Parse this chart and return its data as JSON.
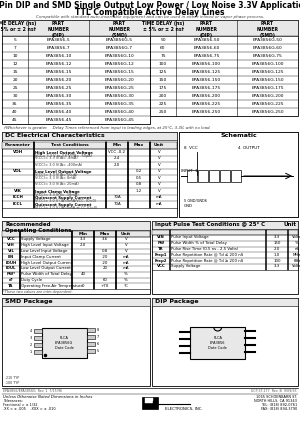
{
  "title_line1": "8 Pin DIP and SMD Single Output Low Power / Low Noise 3.3V Application",
  "title_line2": "TTL Compatible Active Delay Lines",
  "subtitle": "Compatible with standard auto-insertable equipment and can be used in either inlined or vapor phase process.",
  "table1_rows": [
    [
      "5",
      "EPA3856-5",
      "EPA3856G-5"
    ],
    [
      "7",
      "EPA3856-7",
      "EPA3856G-7"
    ],
    [
      "10",
      "EPA3856-10",
      "EPA3856G-10"
    ],
    [
      "12",
      "EPA3856-12",
      "EPA3856G-12"
    ],
    [
      "15",
      "EPA3856-15",
      "EPA3856G-15"
    ],
    [
      "20",
      "EPA3856-20",
      "EPA3856G-20"
    ],
    [
      "25",
      "EPA3856-25",
      "EPA3856G-25"
    ],
    [
      "30",
      "EPA3856-30",
      "EPA3856G-30"
    ],
    [
      "35",
      "EPA3856-35",
      "EPA3856G-35"
    ],
    [
      "40",
      "EPA3856-40",
      "EPA3856G-40"
    ],
    [
      "45",
      "EPA3856-45",
      "EPA3856G-45"
    ]
  ],
  "table2_rows": [
    [
      "50",
      "EPA3856-50",
      "EPA3856G-50"
    ],
    [
      "60",
      "EPA3856-60",
      "EPA3856G-60"
    ],
    [
      "75",
      "EPA3856-75",
      "EPA3856G-75"
    ],
    [
      "100",
      "EPA3856-100",
      "EPA3856G-100"
    ],
    [
      "125",
      "EPA3856-125",
      "EPA3856G-125"
    ],
    [
      "150",
      "EPA3856-150",
      "EPA3856G-150"
    ],
    [
      "175",
      "EPA3856-175",
      "EPA3856G-175"
    ],
    [
      "200",
      "EPA3856-200",
      "EPA3856G-200"
    ],
    [
      "225",
      "EPA3856-225",
      "EPA3856G-225"
    ],
    [
      "250",
      "EPA3856-250",
      "EPA3856G-250"
    ]
  ],
  "col_hdr1": "TIME DELAY (ns)\n± 5% or ± 2 ns†",
  "col_hdr2": "PART\nNUMBER\n(DIP)",
  "col_hdr3": "PART\nNUMBER\n(SMD)",
  "footnote": "†Whichever is greater.    Delay Times referenced from input to leading edges, at 25°C, 3.3V, with no load.",
  "dc_title": "DC Electrical Characteristics",
  "dc_col_headers": [
    "Parameter",
    "Test Conditions",
    "Min",
    "Max",
    "Unit"
  ],
  "dc_rows": [
    [
      "VOH",
      "High Level Output Voltage",
      "VCC= 3.3 V to 3.6 V(TA= -50μA)",
      "VCC -0.2",
      "",
      "V"
    ],
    [
      "",
      "",
      "V(CC)= 3.3 V(IA= -8mA)",
      "2.4",
      "",
      "V"
    ],
    [
      "",
      "",
      "V(CC)= 3.0 V(IA= -400mA)",
      "2.0",
      "",
      "V"
    ],
    [
      "VOL",
      "Low Level Output Voltage",
      "V(CC)= 3.3 V(IA= 50μA)",
      "",
      "0.2",
      "V"
    ],
    [
      "",
      "",
      "V(CC)= 3.3 V(IA= 8mA)",
      "",
      "0.5",
      "V"
    ],
    [
      "",
      "",
      "V(CC)= 3.0 V(IA= 20mA)",
      "",
      "0.8",
      "V"
    ],
    [
      "VIK",
      "Input Clamp Voltage",
      "V(CC)= 3.3 V(II= -18mA)",
      "",
      "1.2",
      "V"
    ],
    [
      "ICCH",
      "Quiescent Supply Current",
      "V(CC)= 3.0 V (IA=0mA/VCC, IO=0)",
      "70A",
      "",
      "mA"
    ],
    [
      "ICCL",
      "Quiescent Supply Current",
      "V(CC)= 3.0 V (IA=0mA at CC IO=0)",
      "70A",
      "",
      "mA"
    ]
  ],
  "sch_title": "Schematic",
  "rec_title": "Recommended\nOperating Conditions",
  "rec_col_headers": [
    "",
    "Min",
    "Max",
    "Unit"
  ],
  "rec_rows": [
    [
      "VCC",
      "Supply Voltage",
      "3.3",
      "3.6",
      "V"
    ],
    [
      "VIH",
      "High Level Input Voltage",
      "2.0",
      "",
      "V"
    ],
    [
      "VIL",
      "Low Level Input Voltage",
      "",
      "0.8",
      "V"
    ],
    [
      "IIN",
      "Input Clamp Current",
      "",
      "-20",
      "mA"
    ],
    [
      "IOUH",
      "High Level Output Current",
      "",
      "-20",
      "mA"
    ],
    [
      "IOUL",
      "Low Level Output Current",
      "",
      "20",
      "mA"
    ],
    [
      "PW*",
      "Pulse Width of Total Delay",
      "40",
      "",
      "%"
    ],
    [
      "d*",
      "Duty Cycle",
      "",
      "60",
      "%"
    ],
    [
      "TA",
      "Operating Free-Air Temperature",
      "0",
      "+70",
      "°C"
    ]
  ],
  "rec_footnote": "*These two values are inter-dependent.",
  "pulse_title": "Input Pulse Test Conditions @ 25° C",
  "pulse_unit": "Unit",
  "pulse_rows": [
    [
      "VIN",
      "Pulse Input Voltage",
      "3.3",
      "Volts"
    ],
    [
      "PW",
      "Pulse Width % of Total Delay",
      "150",
      "%"
    ],
    [
      "TR",
      "Pulse Rise Time (0.5 ns - 2.5 Volts)",
      "2.0",
      "nS"
    ],
    [
      "Frep1",
      "Pulse Repetition Rate @ Td ≤ 200 nS",
      "1.0",
      "MHz"
    ],
    [
      "Frep2",
      "Pulse Repetition Rate @ Td ≥ 200 nS",
      "100",
      "KHz"
    ],
    [
      "VCC",
      "Supply Voltage",
      "3.3",
      "Volts"
    ]
  ],
  "smd_title": "SMD Package",
  "dip_title": "DIP Package",
  "bottom_left1": "Unless Otherwise Noted Dimensions in Inches",
  "bottom_left2": "Tolerances:",
  "bottom_left3": "Fractional = ± 1/32",
  "bottom_left4": ".XX = ± .005    .XXX = ± .010",
  "company_name": "ELECTRONICS, INC.",
  "company_addr1": "1065 SCHOENBARN ST.",
  "company_addr2": "NORTH HILLS, CA 91343",
  "company_tel": "TEL: (818) 892-0761",
  "company_fax": "FAX: (818) 894-3790",
  "bg": "#ffffff",
  "border_color": "#000000",
  "header_bg": "#e8e8e8",
  "section_bg": "#e8e8e8"
}
